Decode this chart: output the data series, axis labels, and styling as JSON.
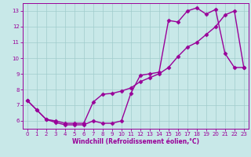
{
  "xlabel": "Windchill (Refroidissement éolien,°C)",
  "xlim": [
    -0.5,
    23.5
  ],
  "ylim": [
    5.5,
    13.5
  ],
  "xticks": [
    0,
    1,
    2,
    3,
    4,
    5,
    6,
    7,
    8,
    9,
    10,
    11,
    12,
    13,
    14,
    15,
    16,
    17,
    18,
    19,
    20,
    21,
    22,
    23
  ],
  "yticks": [
    6,
    7,
    8,
    9,
    10,
    11,
    12,
    13
  ],
  "line_color": "#990099",
  "bg_color": "#c8e8e8",
  "grid_color": "#a0cccc",
  "line1_x": [
    0,
    1,
    2,
    3,
    4,
    5,
    6,
    7,
    8,
    9,
    10,
    11,
    12,
    13,
    14,
    15,
    16,
    17,
    18,
    19,
    20,
    21,
    22,
    23
  ],
  "line1_y": [
    7.3,
    6.7,
    6.1,
    5.9,
    5.75,
    5.75,
    5.75,
    6.0,
    5.85,
    5.85,
    6.0,
    7.75,
    8.9,
    9.0,
    9.1,
    12.4,
    12.3,
    13.0,
    13.2,
    12.8,
    13.1,
    10.3,
    9.4,
    9.4
  ],
  "line2_x": [
    0,
    1,
    2,
    3,
    4,
    5,
    6,
    7,
    8,
    9,
    10,
    11,
    12,
    13,
    14,
    15,
    16,
    17,
    18,
    19,
    20,
    21,
    22,
    23
  ],
  "line2_y": [
    7.3,
    6.7,
    6.1,
    6.0,
    5.85,
    5.85,
    5.85,
    7.2,
    7.7,
    7.75,
    7.9,
    8.1,
    8.5,
    8.75,
    9.0,
    9.4,
    10.1,
    10.7,
    11.0,
    11.5,
    12.0,
    12.75,
    13.0,
    9.4
  ],
  "marker": "D",
  "marker_size": 2.5,
  "linewidth": 1.0,
  "tick_fontsize": 5.0,
  "xlabel_fontsize": 5.5
}
